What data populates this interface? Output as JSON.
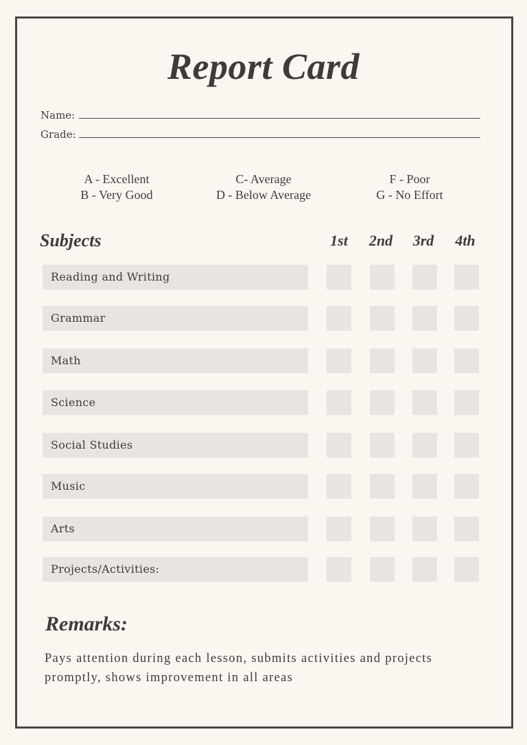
{
  "title": "Report Card",
  "fields": {
    "name_label": "Name:",
    "grade_label": "Grade:"
  },
  "legend": {
    "col1": [
      "A - Excellent",
      "B - Very Good"
    ],
    "col2": [
      "C- Average",
      "D - Below Average"
    ],
    "col3": [
      "F - Poor",
      "G - No Effort"
    ]
  },
  "table": {
    "subjects_header": "Subjects",
    "quarters": [
      "1st",
      "2nd",
      "3rd",
      "4th"
    ],
    "subjects": [
      "Reading and Writing",
      "Grammar",
      "Math",
      "Science",
      "Social Studies",
      "Music",
      "Arts",
      "Projects/Activities:"
    ]
  },
  "remarks": {
    "heading": "Remarks:",
    "text": "Pays attention during each lesson, submits activities and projects promptly, shows improvement in all areas"
  },
  "colors": {
    "background": "#fcf6f1",
    "box": "#e8e4e0",
    "text": "#3f3b38"
  }
}
